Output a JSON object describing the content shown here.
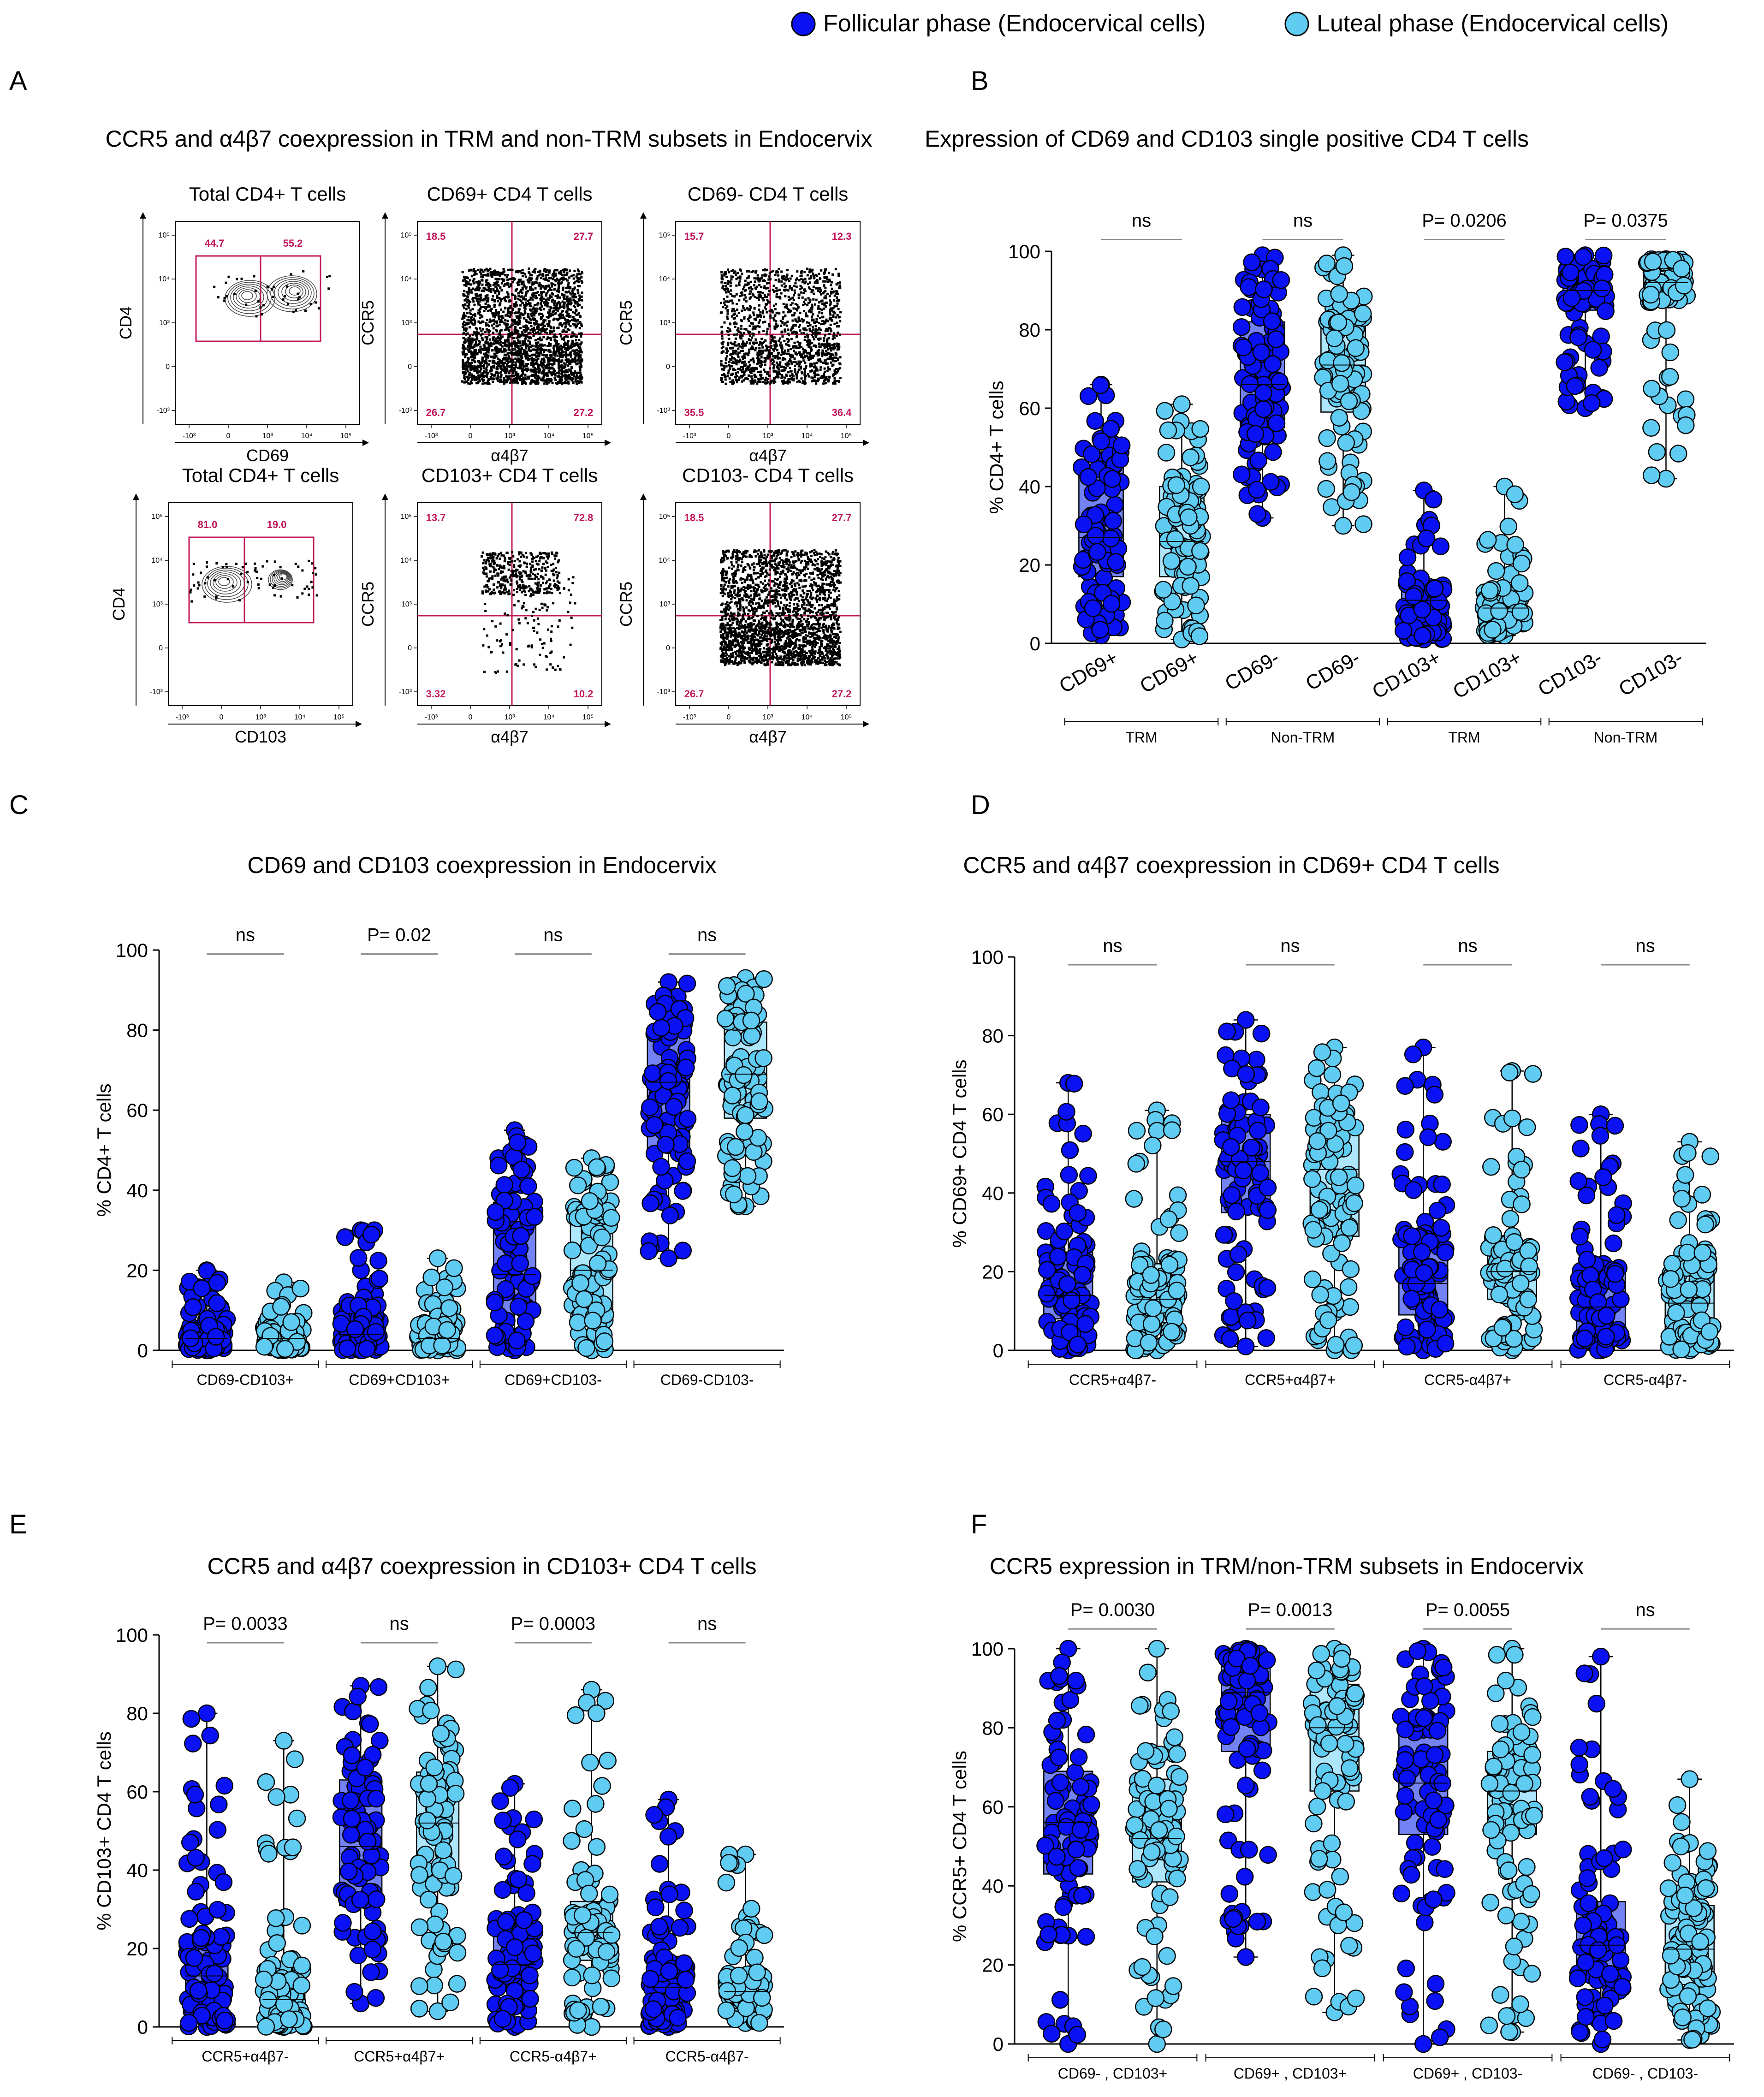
{
  "legend": {
    "follicular": "Follicular phase (Endocervical cells)",
    "luteal": "Luteal phase (Endocervical cells)"
  },
  "colors": {
    "follicular_dot": "#0a12f5",
    "luteal_dot": "#60ccf2",
    "follicular_box": "#7383f5",
    "luteal_box": "#aee6fb",
    "gate": "#c2185b",
    "stroke": "#000000"
  },
  "panelA": {
    "letter": "A",
    "title": "CCR5 and α4β7 coexpression in TRM and non-TRM subsets in Endocervix",
    "plots": [
      {
        "title": "Total CD4+ T cells",
        "xlabel": "CD69",
        "ylabel": "CD4",
        "kind": "contour",
        "q": [
          "44.7",
          "55.2"
        ]
      },
      {
        "title": "CD69+ CD4 T cells",
        "xlabel": "α4β7",
        "ylabel": "CCR5",
        "kind": "dots",
        "q": [
          "18.5",
          "27.7",
          "26.7",
          "27.2"
        ]
      },
      {
        "title": "CD69- CD4 T cells",
        "xlabel": "α4β7",
        "ylabel": "CCR5",
        "kind": "dots",
        "q": [
          "15.7",
          "12.3",
          "35.5",
          "36.4"
        ]
      },
      {
        "title": "Total CD4+ T cells",
        "xlabel": "CD103",
        "ylabel": "CD4",
        "kind": "contour",
        "q": [
          "81.0",
          "19.0"
        ]
      },
      {
        "title": "CD103+ CD4 T cells",
        "xlabel": "α4β7",
        "ylabel": "CCR5",
        "kind": "dots",
        "q": [
          "13.7",
          "72.8",
          "3.32",
          "10.2"
        ]
      },
      {
        "title": "CD103- CD4 T cells",
        "xlabel": "α4β7",
        "ylabel": "CCR5",
        "kind": "dots",
        "q": [
          "18.5",
          "27.7",
          "26.7",
          "27.2"
        ]
      }
    ],
    "ticks": {
      "x": [
        "-10³",
        "0",
        "10³",
        "10⁴",
        "10⁵"
      ],
      "y": [
        "10⁵",
        "10⁴",
        "10³",
        "0",
        "-10³"
      ]
    }
  },
  "chart_data": [
    {
      "id": "B",
      "type": "box",
      "letter": "B",
      "title": "Expression of CD69 and CD103 single positive CD4 T cells",
      "ylabel": "% CD4+ T cells",
      "ylim": [
        0,
        100
      ],
      "yticks": [
        "0",
        "20",
        "40",
        "60",
        "80",
        "100"
      ],
      "categories": [
        "CD69+",
        "CD69+",
        "CD69-",
        "CD69-",
        "CD103+",
        "CD103+",
        "CD103-",
        "CD103-"
      ],
      "phase": [
        "follicular",
        "luteal",
        "follicular",
        "luteal",
        "follicular",
        "luteal",
        "follicular",
        "luteal"
      ],
      "box_stats": [
        {
          "min": 2,
          "q1": 17,
          "median": 27,
          "q3": 45,
          "max": 66
        },
        {
          "min": 1,
          "q1": 17,
          "median": 26,
          "q3": 40,
          "max": 61
        },
        {
          "min": 32,
          "q1": 55,
          "median": 66,
          "q3": 82,
          "max": 99
        },
        {
          "min": 30,
          "q1": 59,
          "median": 71,
          "q3": 83,
          "max": 99
        },
        {
          "min": 1,
          "q1": 5,
          "median": 11,
          "q3": 16,
          "max": 39
        },
        {
          "min": 2,
          "q1": 5,
          "median": 9,
          "q3": 13,
          "max": 40
        },
        {
          "min": 60,
          "q1": 85,
          "median": 90,
          "q3": 94,
          "max": 99
        },
        {
          "min": 42,
          "q1": 87,
          "median": 92,
          "q3": 97,
          "max": 98
        }
      ],
      "tick_rotate": true,
      "brackets": [
        {
          "label": "TRM",
          "from": 0,
          "to": 1
        },
        {
          "label": "Non-TRM",
          "from": 2,
          "to": 3
        },
        {
          "label": "TRM",
          "from": 4,
          "to": 5
        },
        {
          "label": "Non-TRM",
          "from": 6,
          "to": 7
        }
      ],
      "significance": [
        {
          "label": "ns",
          "pair": [
            0,
            1
          ],
          "y": 103
        },
        {
          "label": "ns",
          "pair": [
            2,
            3
          ],
          "y": 103
        },
        {
          "label": "P= 0.0206",
          "pair": [
            4,
            5
          ],
          "y": 103
        },
        {
          "label": "P= 0.0375",
          "pair": [
            6,
            7
          ],
          "y": 103
        }
      ]
    },
    {
      "id": "C",
      "type": "box",
      "letter": "C",
      "title": "CD69 and CD103 coexpression in Endocervix",
      "ylabel": "% CD4+ T cells",
      "ylim": [
        0,
        100
      ],
      "yticks": [
        "0",
        "20",
        "40",
        "60",
        "80",
        "100"
      ],
      "categories": [
        "CD69-CD103+",
        "",
        "CD69+CD103+",
        "",
        "CD69+CD103-",
        "",
        "CD69-CD103-",
        ""
      ],
      "phase": [
        "follicular",
        "luteal",
        "follicular",
        "luteal",
        "follicular",
        "luteal",
        "follicular",
        "luteal"
      ],
      "box_stats": [
        {
          "min": 0,
          "q1": 1,
          "median": 3,
          "q3": 6,
          "max": 20
        },
        {
          "min": 0,
          "q1": 1,
          "median": 3,
          "q3": 5,
          "max": 17
        },
        {
          "min": 0,
          "q1": 2,
          "median": 4,
          "q3": 11,
          "max": 30
        },
        {
          "min": 0,
          "q1": 1,
          "median": 3,
          "q3": 7,
          "max": 23
        },
        {
          "min": 0,
          "q1": 9,
          "median": 19,
          "q3": 37,
          "max": 55
        },
        {
          "min": 0,
          "q1": 10,
          "median": 20,
          "q3": 33,
          "max": 48
        },
        {
          "min": 23,
          "q1": 50,
          "median": 67,
          "q3": 79,
          "max": 92
        },
        {
          "min": 36,
          "q1": 58,
          "median": 69,
          "q3": 82,
          "max": 93
        }
      ],
      "tick_rotate": false,
      "brackets": [
        {
          "label": "CD69-CD103+",
          "from": 0,
          "to": 1
        },
        {
          "label": "CD69+CD103+",
          "from": 2,
          "to": 3
        },
        {
          "label": "CD69+CD103-",
          "from": 4,
          "to": 5
        },
        {
          "label": "CD69-CD103-",
          "from": 6,
          "to": 7
        }
      ],
      "significance": [
        {
          "label": "ns",
          "pair": [
            0,
            1
          ],
          "y": 99
        },
        {
          "label": "P= 0.02",
          "pair": [
            2,
            3
          ],
          "y": 99
        },
        {
          "label": "ns",
          "pair": [
            4,
            5
          ],
          "y": 99
        },
        {
          "label": "ns",
          "pair": [
            6,
            7
          ],
          "y": 99
        }
      ]
    },
    {
      "id": "D",
      "type": "box",
      "letter": "D",
      "title": "CCR5 and α4β7 coexpression in CD69+ CD4 T cells",
      "ylabel": "% CD69+ CD4 T cells",
      "ylim": [
        0,
        100
      ],
      "yticks": [
        "0",
        "20",
        "40",
        "60",
        "80",
        "100"
      ],
      "categories": [
        "",
        "",
        "",
        "",
        "",
        "",
        "",
        ""
      ],
      "phase": [
        "follicular",
        "luteal",
        "follicular",
        "luteal",
        "follicular",
        "luteal",
        "follicular",
        "luteal"
      ],
      "box_stats": [
        {
          "min": 0,
          "q1": 8,
          "median": 14,
          "q3": 25,
          "max": 68
        },
        {
          "min": 0,
          "q1": 7,
          "median": 13,
          "q3": 22,
          "max": 61
        },
        {
          "min": 1,
          "q1": 35,
          "median": 48,
          "q3": 60,
          "max": 84
        },
        {
          "min": 0,
          "q1": 29,
          "median": 46,
          "q3": 58,
          "max": 77
        },
        {
          "min": 0,
          "q1": 9,
          "median": 17,
          "q3": 29,
          "max": 77
        },
        {
          "min": 0,
          "q1": 13,
          "median": 20,
          "q3": 27,
          "max": 71
        },
        {
          "min": 0,
          "q1": 5,
          "median": 11,
          "q3": 22,
          "max": 60
        },
        {
          "min": 0,
          "q1": 5,
          "median": 12,
          "q3": 22,
          "max": 53
        }
      ],
      "tick_rotate": false,
      "brackets": [
        {
          "label": "CCR5+α4β7-",
          "from": 0,
          "to": 1
        },
        {
          "label": "CCR5+α4β7+",
          "from": 2,
          "to": 3
        },
        {
          "label": "CCR5-α4β7+",
          "from": 4,
          "to": 5
        },
        {
          "label": "CCR5-α4β7-",
          "from": 6,
          "to": 7
        }
      ],
      "significance": [
        {
          "label": "ns",
          "pair": [
            0,
            1
          ],
          "y": 98
        },
        {
          "label": "ns",
          "pair": [
            2,
            3
          ],
          "y": 98
        },
        {
          "label": "ns",
          "pair": [
            4,
            5
          ],
          "y": 98
        },
        {
          "label": "ns",
          "pair": [
            6,
            7
          ],
          "y": 98
        }
      ]
    },
    {
      "id": "E",
      "type": "box",
      "letter": "E",
      "title": "CCR5 and α4β7 coexpression in CD103+ CD4 T cells",
      "ylabel": "% CD103+ CD4 T cells",
      "ylim": [
        0,
        100
      ],
      "yticks": [
        "0",
        "20",
        "40",
        "60",
        "80",
        "100"
      ],
      "categories": [
        "",
        "",
        "",
        "",
        "",
        "",
        "",
        ""
      ],
      "phase": [
        "follicular",
        "luteal",
        "follicular",
        "luteal",
        "follicular",
        "luteal",
        "follicular",
        "luteal"
      ],
      "box_stats": [
        {
          "min": 0,
          "q1": 4,
          "median": 13,
          "q3": 23,
          "max": 80
        },
        {
          "min": 0,
          "q1": 3,
          "median": 7,
          "q3": 15,
          "max": 73
        },
        {
          "min": 6,
          "q1": 31,
          "median": 46,
          "q3": 63,
          "max": 87
        },
        {
          "min": 4,
          "q1": 38,
          "median": 52,
          "q3": 65,
          "max": 92
        },
        {
          "min": 0,
          "q1": 10,
          "median": 16,
          "q3": 27,
          "max": 62
        },
        {
          "min": 0,
          "q1": 17,
          "median": 24,
          "q3": 32,
          "max": 86
        },
        {
          "min": 0,
          "q1": 3,
          "median": 10,
          "q3": 18,
          "max": 58
        },
        {
          "min": 1,
          "q1": 5,
          "median": 9,
          "q3": 14,
          "max": 44
        }
      ],
      "tick_rotate": false,
      "brackets": [
        {
          "label": "CCR5+α4β7-",
          "from": 0,
          "to": 1
        },
        {
          "label": "CCR5+α4β7+",
          "from": 2,
          "to": 3
        },
        {
          "label": "CCR5-α4β7+",
          "from": 4,
          "to": 5
        },
        {
          "label": "CCR5-α4β7-",
          "from": 6,
          "to": 7
        }
      ],
      "significance": [
        {
          "label": "P= 0.0033",
          "pair": [
            0,
            1
          ],
          "y": 98
        },
        {
          "label": "ns",
          "pair": [
            2,
            3
          ],
          "y": 98
        },
        {
          "label": "P= 0.0003",
          "pair": [
            4,
            5
          ],
          "y": 98
        },
        {
          "label": "ns",
          "pair": [
            6,
            7
          ],
          "y": 98
        }
      ]
    },
    {
      "id": "F",
      "type": "box",
      "letter": "F",
      "title": "CCR5 expression in TRM/non-TRM subsets in Endocervix",
      "ylabel": "% CCR5+ CD4 T cells",
      "ylim": [
        0,
        100
      ],
      "yticks": [
        "0",
        "20",
        "40",
        "60",
        "80",
        "100"
      ],
      "categories": [
        "",
        "",
        "",
        "",
        "",
        "",
        "",
        ""
      ],
      "phase": [
        "follicular",
        "luteal",
        "follicular",
        "luteal",
        "follicular",
        "luteal",
        "follicular",
        "luteal"
      ],
      "box_stats": [
        {
          "min": 0,
          "q1": 43,
          "median": 56,
          "q3": 69,
          "max": 100
        },
        {
          "min": 0,
          "q1": 41,
          "median": 52,
          "q3": 67,
          "max": 100
        },
        {
          "min": 22,
          "q1": 74,
          "median": 89,
          "q3": 97,
          "max": 100
        },
        {
          "min": 8,
          "q1": 64,
          "median": 80,
          "q3": 91,
          "max": 100
        },
        {
          "min": 0,
          "q1": 53,
          "median": 66,
          "q3": 81,
          "max": 100
        },
        {
          "min": 3,
          "q1": 53,
          "median": 64,
          "q3": 74,
          "max": 100
        },
        {
          "min": 0,
          "q1": 17,
          "median": 25,
          "q3": 36,
          "max": 98
        },
        {
          "min": 1,
          "q1": 15,
          "median": 24,
          "q3": 35,
          "max": 67
        }
      ],
      "tick_rotate": false,
      "brackets": [
        {
          "label": "CD69- , CD103+",
          "from": 0,
          "to": 1
        },
        {
          "label": "CD69+ , CD103+",
          "from": 2,
          "to": 3
        },
        {
          "label": "CD69+ , CD103-",
          "from": 4,
          "to": 5
        },
        {
          "label": "CD69- , CD103-",
          "from": 6,
          "to": 7
        }
      ],
      "significance": [
        {
          "label": "P= 0.0030",
          "pair": [
            0,
            1
          ],
          "y": 105
        },
        {
          "label": "P= 0.0013",
          "pair": [
            2,
            3
          ],
          "y": 105
        },
        {
          "label": "P= 0.0055",
          "pair": [
            4,
            5
          ],
          "y": 105
        },
        {
          "label": "ns",
          "pair": [
            6,
            7
          ],
          "y": 105
        }
      ]
    }
  ]
}
